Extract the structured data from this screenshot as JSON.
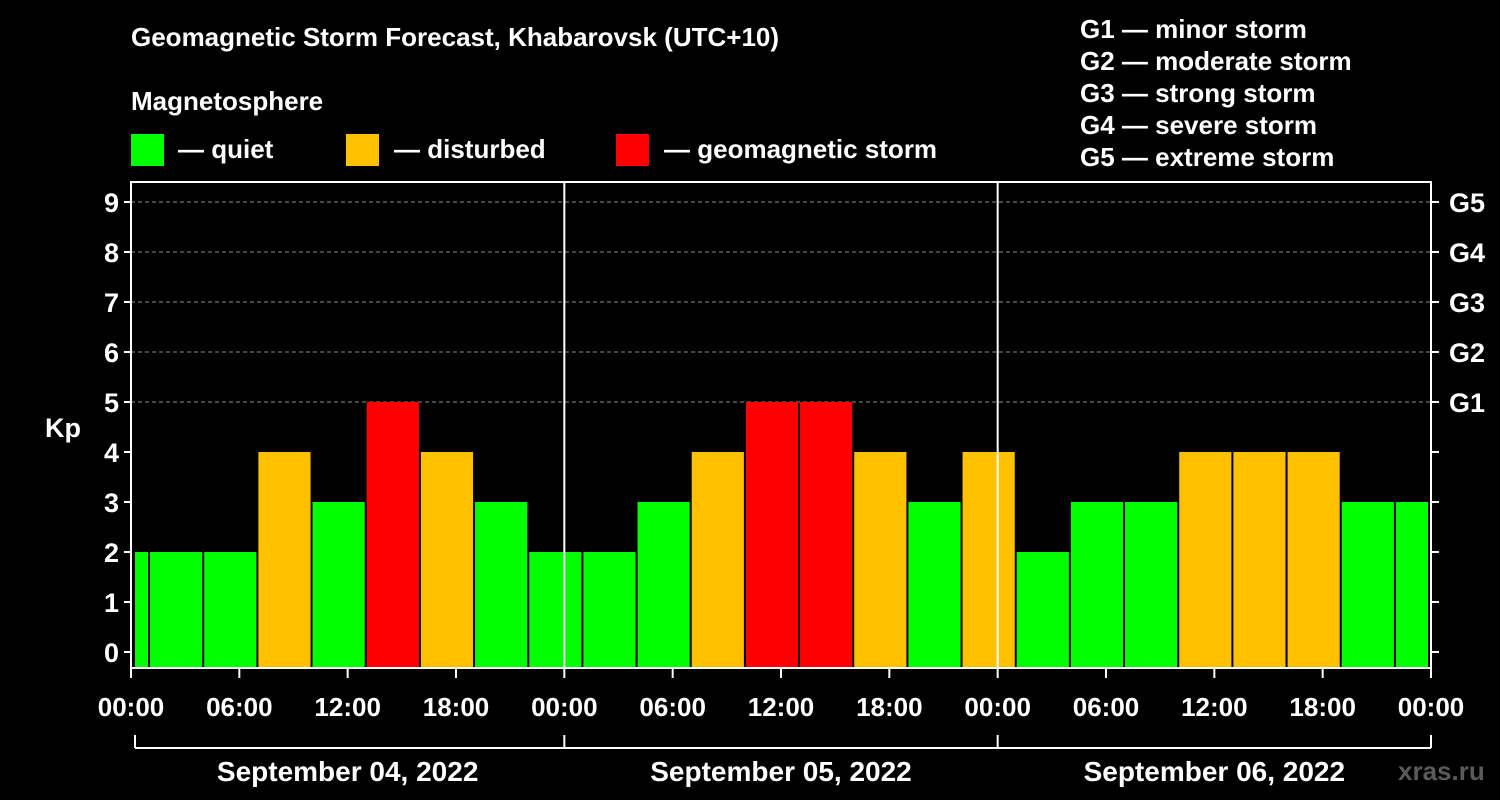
{
  "title": "Geomagnetic Storm Forecast, Khabarovsk (UTC+10)",
  "magnetosphere_label": "Magnetosphere",
  "legend": {
    "quiet": "— quiet",
    "disturbed": "— disturbed",
    "storm": "— geomagnetic storm"
  },
  "colors": {
    "quiet": "#00ff00",
    "disturbed": "#ffc000",
    "storm": "#ff0000",
    "background": "#000000"
  },
  "storm_scale": [
    "G1 — minor storm",
    "G2 — moderate storm",
    "G3 — strong storm",
    "G4 — severe storm",
    "G5 — extreme storm"
  ],
  "watermark": "xras.ru",
  "chart_data": {
    "type": "bar",
    "ylabel": "Kp",
    "ylim": [
      0,
      9
    ],
    "yticks": [
      "0",
      "1",
      "2",
      "3",
      "4",
      "5",
      "6",
      "7",
      "8",
      "9"
    ],
    "right_ticks": [
      {
        "kp": 5,
        "label": "G1"
      },
      {
        "kp": 6,
        "label": "G2"
      },
      {
        "kp": 7,
        "label": "G3"
      },
      {
        "kp": 8,
        "label": "G4"
      },
      {
        "kp": 9,
        "label": "G5"
      }
    ],
    "xlim_hours": [
      0,
      72
    ],
    "xticks": [
      "00:00",
      "06:00",
      "12:00",
      "18:00",
      "00:00",
      "06:00",
      "12:00",
      "18:00",
      "00:00",
      "06:00",
      "12:00",
      "18:00",
      "00:00"
    ],
    "days": [
      "September 04, 2022",
      "September 05, 2022",
      "September 06, 2022"
    ],
    "bars": [
      {
        "start": 0,
        "end": 1,
        "kp": 2,
        "level": "quiet"
      },
      {
        "start": 1,
        "end": 4,
        "kp": 2,
        "level": "quiet"
      },
      {
        "start": 4,
        "end": 7,
        "kp": 2,
        "level": "quiet"
      },
      {
        "start": 7,
        "end": 10,
        "kp": 4,
        "level": "disturbed"
      },
      {
        "start": 10,
        "end": 13,
        "kp": 3,
        "level": "quiet"
      },
      {
        "start": 13,
        "end": 16,
        "kp": 5,
        "level": "storm"
      },
      {
        "start": 16,
        "end": 19,
        "kp": 4,
        "level": "disturbed"
      },
      {
        "start": 19,
        "end": 22,
        "kp": 3,
        "level": "quiet"
      },
      {
        "start": 22,
        "end": 25,
        "kp": 2,
        "level": "quiet"
      },
      {
        "start": 25,
        "end": 28,
        "kp": 2,
        "level": "quiet"
      },
      {
        "start": 28,
        "end": 31,
        "kp": 3,
        "level": "quiet"
      },
      {
        "start": 31,
        "end": 34,
        "kp": 4,
        "level": "disturbed"
      },
      {
        "start": 34,
        "end": 37,
        "kp": 5,
        "level": "storm"
      },
      {
        "start": 37,
        "end": 40,
        "kp": 5,
        "level": "storm"
      },
      {
        "start": 40,
        "end": 43,
        "kp": 4,
        "level": "disturbed"
      },
      {
        "start": 43,
        "end": 46,
        "kp": 3,
        "level": "quiet"
      },
      {
        "start": 46,
        "end": 49,
        "kp": 4,
        "level": "disturbed"
      },
      {
        "start": 49,
        "end": 52,
        "kp": 2,
        "level": "quiet"
      },
      {
        "start": 52,
        "end": 55,
        "kp": 3,
        "level": "quiet"
      },
      {
        "start": 55,
        "end": 58,
        "kp": 3,
        "level": "quiet"
      },
      {
        "start": 58,
        "end": 61,
        "kp": 4,
        "level": "disturbed"
      },
      {
        "start": 61,
        "end": 64,
        "kp": 4,
        "level": "disturbed"
      },
      {
        "start": 64,
        "end": 67,
        "kp": 4,
        "level": "disturbed"
      },
      {
        "start": 67,
        "end": 70,
        "kp": 3,
        "level": "quiet"
      },
      {
        "start": 70,
        "end": 72,
        "kp": 3,
        "level": "quiet"
      }
    ]
  }
}
